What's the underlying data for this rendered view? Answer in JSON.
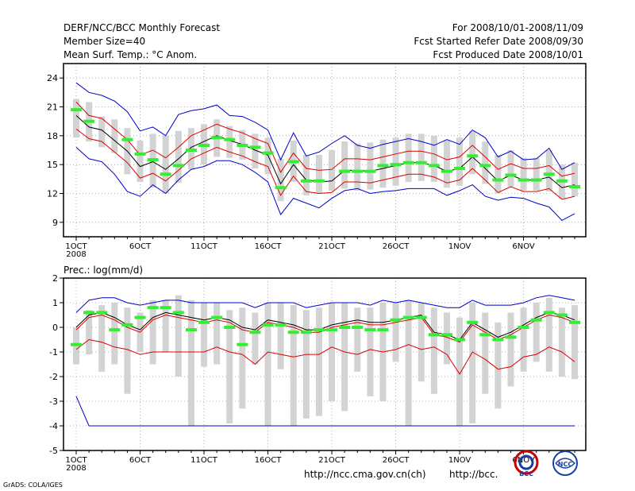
{
  "header": {
    "left": [
      "DERF/NCC/BCC Monthly Forecast",
      "Member Size=40",
      "Mean Surf. Temp.: °C Anom."
    ],
    "right": [
      "For 2008/10/01-2008/11/09",
      "Fcst Started Refer Date 2008/09/30",
      "Fcst Produced Date 2008/10/01"
    ]
  },
  "footer": {
    "url1": "http://ncc.cma.gov.cn(ch)",
    "url2": "http://bcc.",
    "credit": "GrADS: COLA/IGES",
    "logo1": "BCC",
    "logo2": "NCC"
  },
  "colors": {
    "ens_box": "#d3d3d3",
    "mean_marker": "#33ee33",
    "mean_line": "#000000",
    "inner_band": "#dd0000",
    "outer_band": "#0000cc"
  },
  "chart_data": [
    {
      "type": "box",
      "title": "Mean Surf. Temp.: °C Anom.",
      "xlabels": [
        "1OCT",
        "6OCT",
        "11OCT",
        "16OCT",
        "21OCT",
        "26OCT",
        "1NOV",
        "6NOV"
      ],
      "xlabel_year": "2008",
      "days": 40,
      "ylim": [
        7.5,
        25.5
      ],
      "yticks": [
        9,
        12,
        15,
        18,
        21,
        24
      ],
      "series": {
        "center": [
          20.1,
          18.9,
          18.6,
          17.5,
          16.4,
          14.8,
          15.3,
          14.5,
          15.6,
          16.8,
          17.4,
          18.0,
          17.5,
          17.1,
          16.5,
          16.0,
          13.0,
          15.0,
          13.4,
          13.2,
          13.3,
          14.4,
          14.4,
          14.3,
          14.6,
          14.9,
          15.2,
          15.2,
          14.9,
          14.3,
          14.6,
          15.8,
          14.6,
          13.3,
          13.9,
          13.4,
          13.4,
          13.7,
          12.6,
          12.9
        ],
        "red_hi": [
          21.5,
          20.1,
          19.8,
          18.7,
          17.6,
          16.0,
          16.5,
          15.7,
          16.8,
          18.0,
          18.6,
          19.2,
          18.7,
          18.3,
          17.7,
          17.2,
          14.2,
          16.2,
          14.6,
          14.4,
          14.5,
          15.6,
          15.6,
          15.5,
          15.8,
          16.1,
          16.4,
          16.4,
          16.1,
          15.5,
          15.8,
          17.0,
          15.8,
          14.5,
          15.1,
          14.6,
          14.6,
          14.9,
          13.8,
          14.1
        ],
        "red_lo": [
          18.7,
          17.7,
          17.4,
          16.3,
          15.2,
          13.6,
          14.1,
          13.3,
          14.4,
          15.6,
          16.2,
          16.8,
          16.3,
          15.9,
          15.3,
          14.8,
          11.8,
          13.8,
          12.2,
          12.0,
          12.1,
          13.2,
          13.2,
          13.1,
          13.4,
          13.7,
          14.0,
          14.0,
          13.7,
          13.1,
          13.4,
          14.6,
          13.4,
          12.1,
          12.7,
          12.2,
          12.2,
          12.5,
          11.4,
          11.7
        ],
        "blue_hi": [
          23.5,
          22.5,
          22.2,
          21.6,
          20.5,
          18.5,
          18.9,
          18.0,
          20.2,
          20.6,
          20.8,
          21.2,
          20.1,
          20.0,
          19.4,
          18.6,
          15.5,
          18.3,
          15.9,
          16.3,
          17.2,
          18.0,
          17.0,
          16.7,
          17.1,
          17.4,
          17.7,
          17.4,
          17.0,
          17.6,
          17.1,
          18.6,
          17.8,
          15.8,
          16.4,
          15.5,
          15.6,
          16.7,
          14.5,
          15.2
        ],
        "blue_lo": [
          16.8,
          15.6,
          15.3,
          14.0,
          12.2,
          11.7,
          12.9,
          12.0,
          13.4,
          14.5,
          14.8,
          15.4,
          15.4,
          15.0,
          14.2,
          13.2,
          9.8,
          11.5,
          11.0,
          10.5,
          11.5,
          12.3,
          12.5,
          12.0,
          12.2,
          12.3,
          12.5,
          12.5,
          12.5,
          11.8,
          12.3,
          12.9,
          11.7,
          11.3,
          11.6,
          11.5,
          11.0,
          10.6,
          9.2,
          9.9
        ],
        "box_hi": [
          21.8,
          21.5,
          20.0,
          19.7,
          18.8,
          17.5,
          18.2,
          18.0,
          18.5,
          18.8,
          19.2,
          19.7,
          19.0,
          18.6,
          18.2,
          17.8,
          15.6,
          17.5,
          16.0,
          16.0,
          16.5,
          17.4,
          17.2,
          17.3,
          17.6,
          17.8,
          18.2,
          18.2,
          18.0,
          17.5,
          17.8,
          18.5,
          17.4,
          16.0,
          16.5,
          15.7,
          15.7,
          16.5,
          15.0,
          15.2
        ],
        "box_lo": [
          17.8,
          17.4,
          16.8,
          16.2,
          14.0,
          13.2,
          12.6,
          12.0,
          13.1,
          14.5,
          15.0,
          15.8,
          15.7,
          15.5,
          14.6,
          14.0,
          11.2,
          13.2,
          11.8,
          12.0,
          12.3,
          12.5,
          12.3,
          12.4,
          12.6,
          12.8,
          13.2,
          13.3,
          13.2,
          12.6,
          12.8,
          14.0,
          13.0,
          12.0,
          12.7,
          12.3,
          12.3,
          12.2,
          11.5,
          11.7
        ],
        "green": [
          20.7,
          19.5,
          null,
          null,
          17.6,
          16.1,
          15.5,
          14.0,
          14.9,
          16.5,
          17.0,
          17.8,
          17.6,
          17.0,
          16.8,
          16.2,
          12.6,
          15.3,
          13.3,
          13.3,
          null,
          14.3,
          14.3,
          14.3,
          14.9,
          15.0,
          15.2,
          15.2,
          14.9,
          14.3,
          14.6,
          15.9,
          14.9,
          13.4,
          13.9,
          13.4,
          13.4,
          14.0,
          13.3,
          12.7
        ]
      }
    },
    {
      "type": "box",
      "title": "Prec.: log(mm/d)",
      "xlabels": [
        "1OCT",
        "6OCT",
        "11OCT",
        "16OCT",
        "21OCT",
        "26OCT",
        "1NOV",
        "6NOV"
      ],
      "xlabel_year": "2008",
      "days": 40,
      "ylim": [
        -5,
        2
      ],
      "yticks": [
        -5,
        -4,
        -3,
        -2,
        -1,
        0,
        1,
        2
      ],
      "series": {
        "center": [
          0.0,
          0.5,
          0.6,
          0.4,
          0.1,
          -0.1,
          0.4,
          0.6,
          0.5,
          0.4,
          0.3,
          0.4,
          0.3,
          0.0,
          -0.1,
          0.3,
          0.2,
          0.1,
          -0.1,
          -0.1,
          0.1,
          0.2,
          0.3,
          0.2,
          0.2,
          0.3,
          0.4,
          0.5,
          -0.2,
          -0.3,
          -0.5,
          0.2,
          -0.1,
          -0.4,
          -0.2,
          0.1,
          0.4,
          0.6,
          0.5,
          0.3
        ],
        "red_hi": [
          -0.1,
          0.4,
          0.5,
          0.3,
          0.0,
          -0.2,
          0.3,
          0.5,
          0.4,
          0.3,
          0.2,
          0.3,
          0.2,
          -0.1,
          -0.2,
          0.2,
          0.1,
          0.0,
          -0.2,
          -0.2,
          0.0,
          0.1,
          0.2,
          0.1,
          0.1,
          0.2,
          0.3,
          0.4,
          -0.3,
          -0.4,
          -0.6,
          0.1,
          -0.2,
          -0.5,
          -0.3,
          0.0,
          0.3,
          0.5,
          0.4,
          0.2
        ],
        "red_lo": [
          -0.9,
          -0.5,
          -0.6,
          -0.8,
          -0.9,
          -1.1,
          -1.0,
          -1.0,
          -1.0,
          -1.0,
          -1.0,
          -0.8,
          -1.0,
          -1.1,
          -1.5,
          -1.0,
          -1.1,
          -1.2,
          -1.1,
          -1.1,
          -0.8,
          -1.0,
          -1.1,
          -0.9,
          -1.0,
          -0.9,
          -0.7,
          -0.9,
          -0.8,
          -1.1,
          -1.9,
          -1.0,
          -1.3,
          -1.7,
          -1.6,
          -1.2,
          -1.1,
          -0.8,
          -1.0,
          -1.4
        ],
        "blue_hi": [
          0.6,
          1.1,
          1.2,
          1.2,
          1.0,
          0.9,
          1.0,
          1.1,
          1.1,
          1.0,
          1.0,
          1.0,
          1.0,
          1.0,
          0.8,
          1.0,
          1.0,
          1.0,
          0.8,
          0.9,
          1.0,
          1.0,
          1.0,
          0.9,
          1.1,
          1.0,
          1.1,
          1.0,
          0.9,
          0.8,
          0.8,
          1.1,
          0.9,
          0.9,
          0.9,
          1.0,
          1.2,
          1.3,
          1.2,
          1.1
        ],
        "blue_lo": [
          -2.8,
          -4.0,
          -4.0,
          -4.0,
          -4.0,
          -4.0,
          -4.0,
          -4.0,
          -4.0,
          -4.0,
          -4.0,
          -4.0,
          -4.0,
          -4.0,
          -4.0,
          -4.0,
          -4.0,
          -4.0,
          -4.0,
          -4.0,
          -4.0,
          -4.0,
          -4.0,
          -4.0,
          -4.0,
          -4.0,
          -4.0,
          -4.0,
          -4.0,
          -4.0,
          -4.0,
          -4.0,
          -4.0,
          -4.0,
          -4.0,
          -4.0,
          -4.0,
          -4.0,
          -4.0,
          -4.0
        ],
        "box_hi": [
          0.0,
          0.7,
          0.9,
          1.0,
          0.8,
          0.6,
          1.1,
          1.1,
          1.3,
          1.1,
          1.0,
          1.0,
          0.7,
          0.8,
          0.6,
          1.0,
          1.0,
          0.9,
          0.7,
          0.8,
          1.0,
          1.0,
          0.8,
          0.8,
          1.0,
          1.0,
          1.1,
          1.0,
          0.8,
          0.6,
          0.4,
          1.0,
          0.6,
          0.2,
          0.6,
          0.8,
          1.0,
          1.2,
          0.8,
          0.9
        ],
        "box_lo": [
          -1.5,
          -1.1,
          -1.8,
          -1.5,
          -2.7,
          -1.0,
          -1.5,
          -1.0,
          -2.0,
          -4.0,
          -1.6,
          -1.5,
          -3.9,
          -3.3,
          -1.5,
          -4.0,
          -1.7,
          -4.0,
          -3.7,
          -3.6,
          -3.0,
          -3.4,
          -1.8,
          -2.8,
          -3.0,
          -1.4,
          -4.0,
          -2.2,
          -2.7,
          -1.5,
          -4.0,
          -3.9,
          -2.7,
          -3.3,
          -2.4,
          -1.8,
          -1.4,
          -1.8,
          -2.0,
          -2.1
        ],
        "green": [
          -0.7,
          0.6,
          0.6,
          -0.1,
          0.1,
          0.4,
          0.8,
          0.8,
          0.6,
          -0.1,
          0.2,
          0.4,
          0.0,
          -0.7,
          -0.2,
          0.1,
          0.1,
          -0.2,
          -0.2,
          -0.1,
          -0.1,
          0.0,
          0.0,
          -0.1,
          -0.1,
          0.3,
          0.4,
          0.4,
          -0.3,
          -0.3,
          -0.5,
          0.2,
          -0.3,
          -0.5,
          -0.4,
          0.0,
          0.3,
          0.6,
          0.5,
          0.2
        ]
      }
    }
  ]
}
